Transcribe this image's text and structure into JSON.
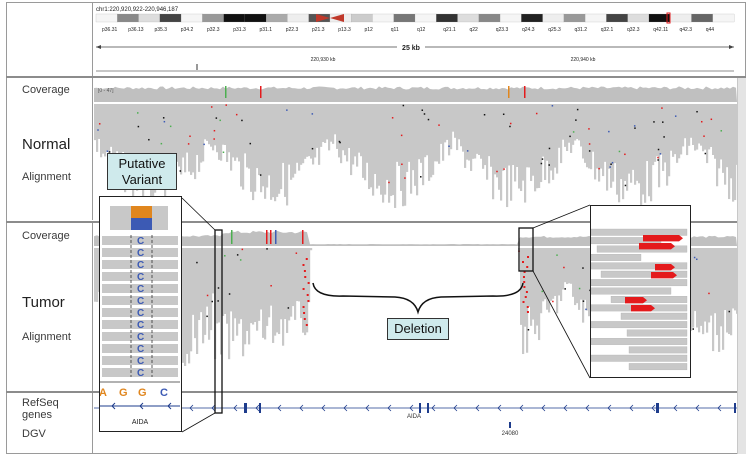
{
  "header": {
    "locus": "chr1:220,920,922-220,946,187",
    "span": "25 kb",
    "ruler_ticks": [
      "220,930 kb",
      "220,940 kb"
    ],
    "bands": [
      "p36.31",
      "p36.13",
      "p35.3",
      "p34.2",
      "p32.3",
      "p31.3",
      "p31.1",
      "p22.3",
      "p21.3",
      "p13.3",
      "p12",
      "q11",
      "q12",
      "q21.1",
      "q22",
      "q23.3",
      "q24.3",
      "q25.3",
      "q31.2",
      "q32.1",
      "q32.3",
      "q42.11",
      "q42.3",
      "q44"
    ]
  },
  "normal": {
    "coverage_label": "Coverage",
    "coverage_range": "[0 - 47]",
    "name": "Normal",
    "alignment_label": "Alignment"
  },
  "tumor": {
    "coverage_label": "Coverage",
    "name": "Tumor",
    "alignment_label": "Alignment"
  },
  "annotations": {
    "putative_variant": "Putative Variant",
    "deletion": "Deletion"
  },
  "variant_inset": {
    "bases": [
      "A",
      "G",
      "G",
      "C"
    ],
    "read_base": "C",
    "gene": "AIDA"
  },
  "tracks": {
    "refseq_label": "RefSeq genes",
    "dgv_label": "DGV",
    "gene_name": "AIDA",
    "dgv_id": "24080"
  },
  "colors": {
    "read": "#c8c8c8",
    "coverage": "#c0c0c0",
    "callout_fill": "#cfeaec",
    "mismatch_red": "#e41a1c",
    "base_c": "#3c5ab4",
    "base_g": "#e0861e",
    "gene_blue": "#1e3c8c"
  }
}
